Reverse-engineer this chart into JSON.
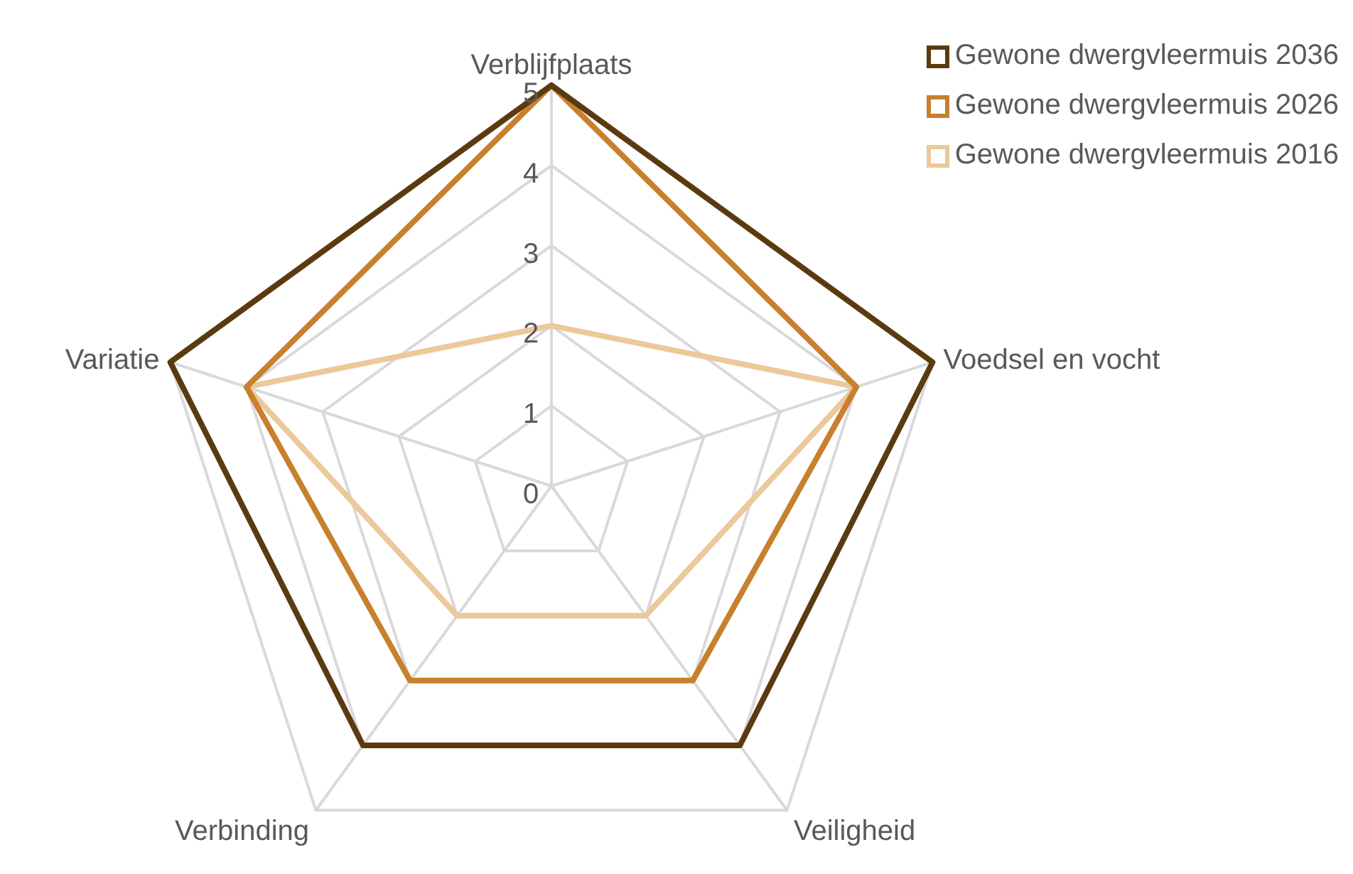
{
  "chart_data": {
    "type": "radar",
    "categories": [
      "Verblijfplaats",
      "Voedsel en vocht",
      "Veiligheid",
      "Verbinding",
      "Variatie"
    ],
    "series": [
      {
        "name": "Gewone dwergvleermuis 2036",
        "color": "#5c3a10",
        "values": [
          5,
          5,
          4,
          4,
          5
        ]
      },
      {
        "name": "Gewone dwergvleermuis 2026",
        "color": "#c8802f",
        "values": [
          5,
          4,
          3,
          3,
          4
        ]
      },
      {
        "name": "Gewone dwergvleermuis 2016",
        "color": "#ecc99a",
        "values": [
          2,
          4,
          2,
          2,
          4
        ]
      }
    ],
    "ylim": [
      0,
      5
    ],
    "yticks": [
      0,
      1,
      2,
      3,
      4,
      5
    ],
    "grid": true,
    "legend": "top right",
    "marker": "none"
  }
}
